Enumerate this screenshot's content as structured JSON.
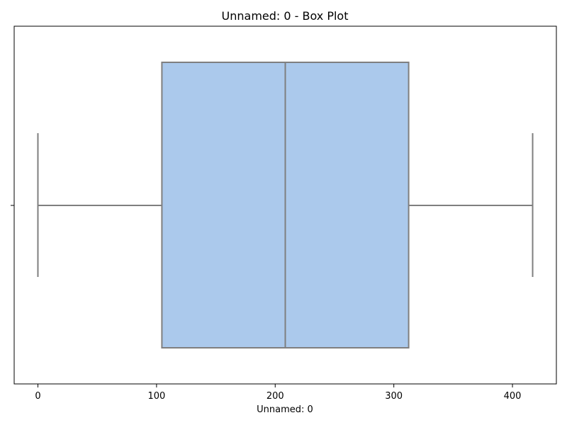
{
  "chart_data": {
    "type": "box",
    "title": "Unnamed: 0 - Box Plot",
    "xlabel": "Unnamed: 0",
    "ylabel": "",
    "orientation": "horizontal",
    "xlim": [
      -20,
      437
    ],
    "xticks": [
      0,
      100,
      200,
      300,
      400
    ],
    "grid": false,
    "legend": "none",
    "series": [
      {
        "min": 0,
        "q1": 104.5,
        "median": 208.5,
        "q3": 312.5,
        "max": 417
      }
    ],
    "colors": {
      "box_fill": "#abc9ec",
      "box_line": "#7f7f7f",
      "axis": "#000000"
    }
  }
}
